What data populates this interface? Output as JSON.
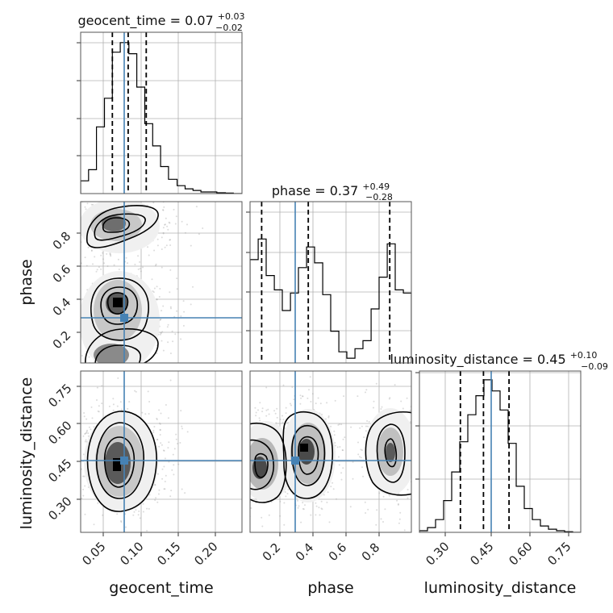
{
  "chart_data": {
    "type": "corner",
    "parameters": [
      "geocent_time",
      "phase",
      "luminosity_distance"
    ],
    "truths": {
      "geocent_time": 0.077,
      "phase": 0.28,
      "luminosity_distance": 0.447
    },
    "titles": {
      "geocent_time": {
        "name": "geocent_time",
        "median": "0.07",
        "plus": "+0.03",
        "minus": "−0.02"
      },
      "phase": {
        "name": "phase",
        "median": "0.37",
        "plus": "+0.49",
        "minus": "−0.28"
      },
      "luminosity_distance": {
        "name": "luminosity_distance",
        "median": "0.45",
        "plus": "+0.10",
        "minus": "−0.09"
      }
    },
    "ranges": {
      "geocent_time": [
        0.008,
        0.232
      ],
      "phase": [
        0.02,
        0.99
      ],
      "luminosity_distance": [
        0.2,
        0.83
      ]
    },
    "ticks": {
      "geocent_time": [
        "0.05",
        "0.10",
        "0.15",
        "0.20"
      ],
      "phase_x": [
        "0.2",
        "0.4",
        "0.6",
        "0.8"
      ],
      "phase_y": [
        "0.2",
        "0.4",
        "0.6",
        "0.8"
      ],
      "luminosity_distance_x": [
        "0.30",
        "0.45",
        "0.60",
        "0.75"
      ],
      "luminosity_distance_y": [
        "0.30",
        "0.45",
        "0.60",
        "0.75"
      ]
    },
    "histograms": {
      "geocent_time": {
        "edges": [
          0.008,
          0.019,
          0.03,
          0.041,
          0.052,
          0.063,
          0.075,
          0.086,
          0.097,
          0.108,
          0.119,
          0.13,
          0.142,
          0.153,
          0.164,
          0.175,
          0.186,
          0.197,
          0.209,
          0.22,
          0.232
        ],
        "counts": [
          0.08,
          0.15,
          0.42,
          0.6,
          0.89,
          0.95,
          0.88,
          0.67,
          0.44,
          0.3,
          0.17,
          0.09,
          0.05,
          0.03,
          0.02,
          0.01,
          0.01,
          0.005,
          0.003,
          0.0
        ],
        "quantiles": [
          0.052,
          0.074,
          0.099
        ]
      },
      "phase": {
        "edges": [
          0.02,
          0.069,
          0.117,
          0.166,
          0.214,
          0.263,
          0.311,
          0.36,
          0.408,
          0.457,
          0.505,
          0.554,
          0.602,
          0.651,
          0.699,
          0.748,
          0.796,
          0.845,
          0.893,
          0.942,
          0.99
        ],
        "counts": [
          0.65,
          0.78,
          0.55,
          0.46,
          0.33,
          0.44,
          0.6,
          0.73,
          0.63,
          0.43,
          0.2,
          0.07,
          0.03,
          0.09,
          0.14,
          0.34,
          0.54,
          0.75,
          0.46,
          0.44
        ],
        "quantiles": [
          0.09,
          0.37,
          0.86
        ]
      },
      "luminosity_distance": {
        "edges": [
          0.2,
          0.2315,
          0.263,
          0.2945,
          0.326,
          0.3575,
          0.389,
          0.4205,
          0.452,
          0.4835,
          0.515,
          0.5465,
          0.578,
          0.6095,
          0.641,
          0.6725,
          0.704,
          0.7355,
          0.767,
          0.7985,
          0.83
        ],
        "counts": [
          0.01,
          0.03,
          0.08,
          0.2,
          0.38,
          0.57,
          0.74,
          0.86,
          0.96,
          0.89,
          0.77,
          0.56,
          0.29,
          0.15,
          0.08,
          0.04,
          0.02,
          0.01,
          0.004,
          0.0
        ],
        "quantiles": [
          0.36,
          0.45,
          0.55
        ]
      }
    }
  }
}
